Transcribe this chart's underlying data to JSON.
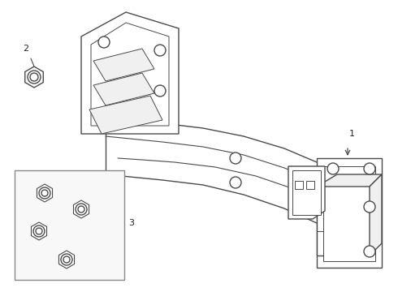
{
  "bg_color": "#ffffff",
  "lc": "#4a4a4a",
  "lc_light": "#888888",
  "lw": 1.0,
  "label_fontsize": 8,
  "label_color": "#222222",
  "fill_light": "#f0f0f0",
  "fill_white": "#ffffff"
}
